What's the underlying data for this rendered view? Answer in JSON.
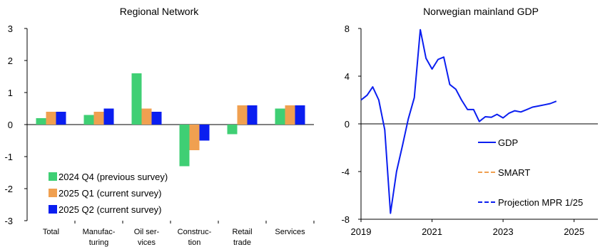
{
  "chart_data": [
    {
      "type": "bar",
      "title": "Regional Network",
      "categories": [
        "Total",
        "Manufac-\nturing",
        "Oil ser-\nvices",
        "Construc-\ntion",
        "Retail\ntrade",
        "Services"
      ],
      "series": [
        {
          "name": "2024 Q4 (previous survey)",
          "color": "#3fcf74",
          "values": [
            0.2,
            0.3,
            1.6,
            -1.3,
            -0.3,
            0.5
          ]
        },
        {
          "name": "2025 Q1 (current survey)",
          "color": "#f0a050",
          "values": [
            0.4,
            0.4,
            0.5,
            -0.8,
            0.6,
            0.6
          ]
        },
        {
          "name": "2025 Q2 (current survey)",
          "color": "#0a1ef0",
          "values": [
            0.4,
            0.5,
            0.4,
            -0.5,
            0.6,
            0.6
          ]
        }
      ],
      "ylim": [
        -3,
        3
      ],
      "yticks": [
        "-3",
        "-2",
        "-1",
        "0",
        "1",
        "2",
        "3"
      ],
      "legend": "bottom-left",
      "grid": false
    },
    {
      "type": "line",
      "title": "Norwegian mainland GDP",
      "xlim": [
        2019.0,
        2025.67
      ],
      "xticks": [
        "2019",
        "2021",
        "2023",
        "2025"
      ],
      "ylim": [
        -8,
        8
      ],
      "yticks": [
        "-8",
        "-4",
        "0",
        "4",
        "8"
      ],
      "legend": "right",
      "grid": false,
      "series": [
        {
          "name": "GDP",
          "color": "#0a1ef0",
          "style": "solid",
          "x": [
            2019.0,
            2019.17,
            2019.33,
            2019.5,
            2019.67,
            2019.83,
            2020.0,
            2020.17,
            2020.33,
            2020.5,
            2020.67,
            2020.83,
            2021.0,
            2021.17,
            2021.33,
            2021.5,
            2021.67,
            2021.83,
            2022.0,
            2022.17,
            2022.33,
            2022.5,
            2022.67,
            2022.83,
            2023.0,
            2023.17,
            2023.33,
            2023.5,
            2023.67,
            2023.83,
            2024.0,
            2024.17,
            2024.33,
            2024.5
          ],
          "y": [
            2.0,
            2.4,
            3.1,
            2.0,
            -0.5,
            -7.5,
            -4.0,
            -1.8,
            0.4,
            2.2,
            7.9,
            5.5,
            4.6,
            5.4,
            5.6,
            3.3,
            2.9,
            2.0,
            1.2,
            1.2,
            0.2,
            0.6,
            0.55,
            0.8,
            0.5,
            0.9,
            1.1,
            1.0,
            1.2,
            1.4,
            1.5,
            1.6,
            1.7,
            1.9
          ]
        },
        {
          "name": "SMART",
          "color": "#f0a050",
          "style": "dashed",
          "x": [],
          "y": []
        },
        {
          "name": "Projection MPR 1/25",
          "color": "#0a1ef0",
          "style": "dashed",
          "x": [],
          "y": []
        }
      ]
    }
  ]
}
